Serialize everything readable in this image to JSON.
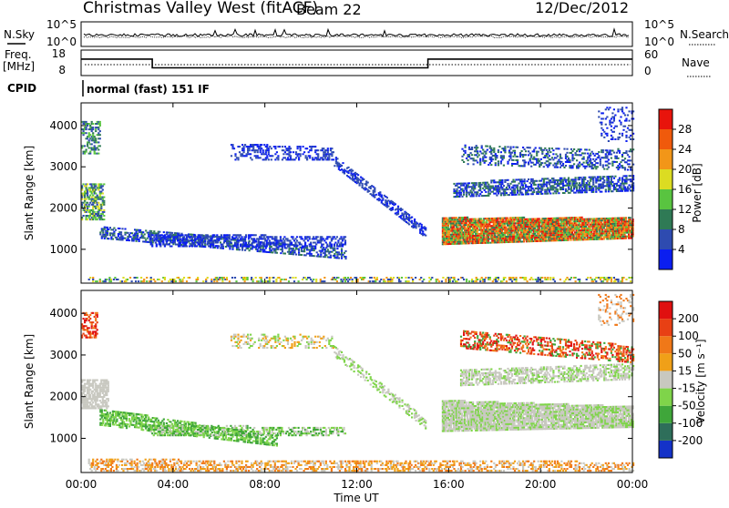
{
  "header": {
    "title": "Christmas Valley West (fitACF)",
    "beam": "Beam 22",
    "date": "12/Dec/2012"
  },
  "nsky_panel": {
    "left_label": "N.Sky",
    "right_label": "N.Search",
    "left_ticks": [
      "10^5",
      "10^0"
    ],
    "right_ticks": [
      "10^5",
      "10^0"
    ]
  },
  "freq_panel": {
    "left_label_1": "Freq.",
    "left_label_2": "[MHz]",
    "right_label": "Nave",
    "left_ticks": [
      "18",
      "8"
    ],
    "right_ticks": [
      "60",
      "0"
    ],
    "freq_steps": [
      {
        "from_hour": 0,
        "to_hour": 3.1,
        "value_mhz": 14.7
      },
      {
        "from_hour": 3.1,
        "to_hour": 15.1,
        "value_mhz": 10.7
      },
      {
        "from_hour": 15.1,
        "to_hour": 24,
        "value_mhz": 14.7
      }
    ]
  },
  "cpid": {
    "label": "CPID",
    "text": "normal (fast) 151 IF"
  },
  "range_axis": {
    "label": "Slant Range [km]",
    "ticks": [
      "1000",
      "2000",
      "3000",
      "4000"
    ],
    "tick_values": [
      1000,
      2000,
      3000,
      4000
    ],
    "range": [
      180,
      4550
    ]
  },
  "time_axis": {
    "label": "Time UT",
    "ticks": [
      "00:00",
      "04:00",
      "08:00",
      "12:00",
      "16:00",
      "20:00",
      "00:00"
    ],
    "tick_hours": [
      0,
      4,
      8,
      12,
      16,
      20,
      24
    ]
  },
  "power_colorbar": {
    "label": "Power [dB]",
    "ticks": [
      "4",
      "8",
      "12",
      "16",
      "20",
      "24",
      "28"
    ],
    "colors": [
      "#0b1ef0",
      "#2e4bb0",
      "#2f7a55",
      "#59c440",
      "#dcdc22",
      "#f29618",
      "#f05a0c",
      "#e8140c"
    ]
  },
  "velocity_colorbar": {
    "label": "Velocity [m s⁻¹]",
    "ticks": [
      "200",
      "100",
      "50",
      "15",
      "-15",
      "-50",
      "-100",
      "-200"
    ],
    "colors": [
      "#1432c8",
      "#2e6e5a",
      "#3fa63a",
      "#7fd44a",
      "#c8c8c0",
      "#f0a018",
      "#f07818",
      "#e84014",
      "#e01010"
    ]
  },
  "chart_data": {
    "type": "heatmap",
    "x_unit": "hours UT",
    "y_unit": "km",
    "xlim": [
      0,
      24
    ],
    "ylim": [
      180,
      4550
    ],
    "power_regions": [
      {
        "name": "ground scatter bottom",
        "t0": 0.3,
        "t1": 24,
        "r0": 200,
        "r1": 330,
        "r_end0": 200,
        "r_end1": 330,
        "density": 0.35,
        "colors": [
          "#f29618",
          "#59c440",
          "#2e4bb0",
          "#dcdc22"
        ]
      },
      {
        "name": "mid band early",
        "t0": 0.8,
        "t1": 11.5,
        "r0": 1250,
        "r1": 1550,
        "r_end0": 750,
        "r_end1": 1000,
        "density": 0.55,
        "colors": [
          "#2e4bb0",
          "#0b1ef0",
          "#2f7a55"
        ]
      },
      {
        "name": "band 1200",
        "t0": 3.0,
        "t1": 11.5,
        "r0": 1050,
        "r1": 1350,
        "r_end0": 1050,
        "r_end1": 1300,
        "density": 0.5,
        "colors": [
          "#2e4bb0",
          "#0b1ef0"
        ]
      },
      {
        "name": "early top",
        "t0": 0.0,
        "t1": 0.8,
        "r0": 3300,
        "r1": 4100,
        "r_end0": 3300,
        "r_end1": 4100,
        "density": 0.5,
        "colors": [
          "#2f7a55",
          "#59c440",
          "#2e4bb0"
        ]
      },
      {
        "name": "early 2000",
        "t0": 0.0,
        "t1": 1.0,
        "r0": 1700,
        "r1": 2600,
        "r_end0": 1700,
        "r_end1": 2600,
        "density": 0.6,
        "colors": [
          "#2f7a55",
          "#59c440",
          "#dcdc22",
          "#2e4bb0"
        ]
      },
      {
        "name": "arc 3300",
        "t0": 6.5,
        "t1": 11.0,
        "r0": 3150,
        "r1": 3550,
        "r_end0": 3150,
        "r_end1": 3450,
        "density": 0.35,
        "colors": [
          "#2e4bb0",
          "#0b1ef0"
        ]
      },
      {
        "name": "descending feature",
        "t0": 11.0,
        "t1": 15.0,
        "r0": 3000,
        "r1": 3250,
        "r_end0": 1250,
        "r_end1": 1500,
        "density": 0.55,
        "colors": [
          "#2e4bb0",
          "#0b1ef0"
        ]
      },
      {
        "name": "strong echo",
        "t0": 15.7,
        "t1": 24,
        "r0": 1100,
        "r1": 1750,
        "r_end0": 1250,
        "r_end1": 1750,
        "density": 0.95,
        "colors": [
          "#e8140c",
          "#f05a0c",
          "#f29618",
          "#59c440",
          "#2f7a55"
        ]
      },
      {
        "name": "band 2500",
        "t0": 16.2,
        "t1": 24,
        "r0": 2250,
        "r1": 2600,
        "r_end0": 2400,
        "r_end1": 2800,
        "density": 0.6,
        "colors": [
          "#2e4bb0",
          "#2f7a55",
          "#0b1ef0"
        ]
      },
      {
        "name": "band 3200",
        "t0": 16.5,
        "t1": 24,
        "r0": 3050,
        "r1": 3500,
        "r_end0": 2900,
        "r_end1": 3400,
        "density": 0.35,
        "colors": [
          "#2e4bb0",
          "#0b1ef0",
          "#2f7a55"
        ]
      },
      {
        "name": "late top",
        "t0": 22.5,
        "t1": 24,
        "r0": 3600,
        "r1": 4450,
        "r_end0": 3600,
        "r_end1": 4450,
        "density": 0.2,
        "colors": [
          "#2e4bb0",
          "#0b1ef0"
        ]
      }
    ],
    "velocity_regions": [
      {
        "name": "ground scatter bottom",
        "t0": 0.3,
        "t1": 24,
        "r0": 200,
        "r1": 480,
        "r_end0": 200,
        "r_end1": 420,
        "density": 0.45,
        "colors": [
          "#f0a018",
          "#f07818",
          "#c8c8c0"
        ]
      },
      {
        "name": "green band early",
        "t0": 0.8,
        "t1": 8.5,
        "r0": 1300,
        "r1": 1700,
        "r_end0": 800,
        "r_end1": 1050,
        "density": 0.6,
        "colors": [
          "#7fd44a",
          "#3fa63a"
        ]
      },
      {
        "name": "green band 1100",
        "t0": 3.0,
        "t1": 11.5,
        "r0": 1050,
        "r1": 1300,
        "r_end0": 1050,
        "r_end1": 1250,
        "density": 0.5,
        "colors": [
          "#7fd44a",
          "#3fa63a",
          "#c8c8c0"
        ]
      },
      {
        "name": "grey early",
        "t0": 0.0,
        "t1": 1.2,
        "r0": 1700,
        "r1": 2400,
        "r_end0": 1700,
        "r_end1": 2400,
        "density": 0.7,
        "colors": [
          "#c8c8c0"
        ]
      },
      {
        "name": "early red top",
        "t0": 0.0,
        "t1": 0.7,
        "r0": 3400,
        "r1": 4000,
        "r_end0": 3400,
        "r_end1": 4000,
        "density": 0.5,
        "colors": [
          "#e01010",
          "#f07818",
          "#e84014"
        ]
      },
      {
        "name": "arc 3300",
        "t0": 6.5,
        "t1": 11.0,
        "r0": 3150,
        "r1": 3500,
        "r_end0": 3150,
        "r_end1": 3450,
        "density": 0.3,
        "colors": [
          "#f0a018",
          "#c8c8c0",
          "#7fd44a"
        ]
      },
      {
        "name": "descending feature",
        "t0": 11.0,
        "t1": 15.0,
        "r0": 2950,
        "r1": 3200,
        "r_end0": 1200,
        "r_end1": 1450,
        "density": 0.45,
        "colors": [
          "#7fd44a",
          "#c8c8c0"
        ]
      },
      {
        "name": "grey strong",
        "t0": 15.7,
        "t1": 24,
        "r0": 1150,
        "r1": 1900,
        "r_end0": 1250,
        "r_end1": 1750,
        "density": 0.9,
        "colors": [
          "#c8c8c0",
          "#c8c8c0",
          "#7fd44a"
        ]
      },
      {
        "name": "grey 2500",
        "t0": 16.5,
        "t1": 24,
        "r0": 2250,
        "r1": 2650,
        "r_end0": 2400,
        "r_end1": 2800,
        "density": 0.55,
        "colors": [
          "#c8c8c0",
          "#c8c8c0",
          "#7fd44a"
        ]
      },
      {
        "name": "red 3300",
        "t0": 16.5,
        "t1": 24,
        "r0": 3150,
        "r1": 3600,
        "r_end0": 2800,
        "r_end1": 3200,
        "density": 0.45,
        "colors": [
          "#e01010",
          "#e84014",
          "#f07818",
          "#3fa63a"
        ]
      },
      {
        "name": "late top",
        "t0": 22.5,
        "t1": 24,
        "r0": 3700,
        "r1": 4450,
        "r_end0": 3700,
        "r_end1": 4450,
        "density": 0.2,
        "colors": [
          "#f07818",
          "#c8c8c0"
        ]
      }
    ]
  }
}
